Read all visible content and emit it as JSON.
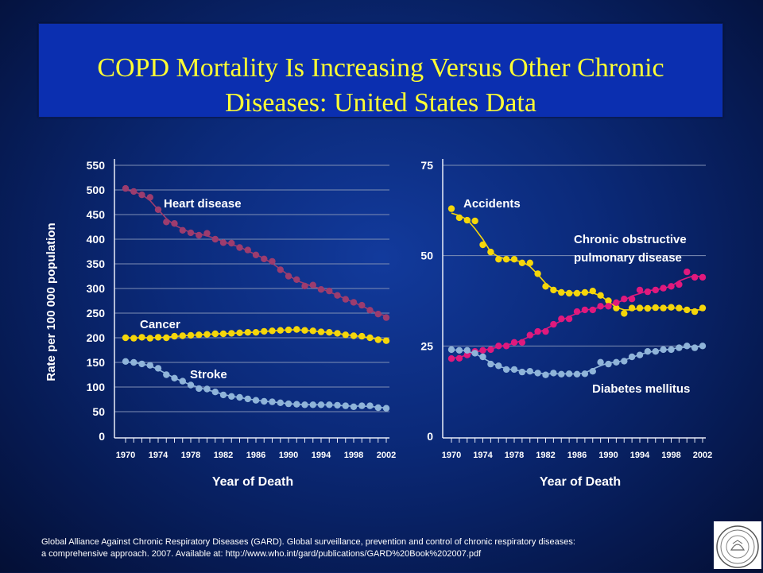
{
  "title": {
    "line1": "COPD Mortality Is Increasing Versus Other Chronic",
    "line2": "Diseases: United States Data"
  },
  "citation": {
    "line1": "Global Alliance Against Chronic Respiratory Diseases (GARD). Global surveillance, prevention and control of chronic respiratory diseases:",
    "line2": "a comprehensive approach. 2007. Available at: http://www.who.int/gard/publications/GARD%20Book%202007.pdf"
  },
  "colors": {
    "heart": "#9c3c6e",
    "cancer": "#f5d60a",
    "stroke": "#8fb4d9",
    "accidents": "#f5d60a",
    "copd": "#e0197d",
    "diabetes": "#8fb4d9",
    "grid": "#7f8fb5"
  },
  "chart_data": [
    {
      "type": "line",
      "xlabel": "Year of Death",
      "ylabel": "Rate per 100 000 population",
      "xlim": [
        1970,
        2002
      ],
      "ylim": [
        0,
        550
      ],
      "x_ticks": [
        1970,
        1974,
        1978,
        1982,
        1986,
        1990,
        1994,
        1998,
        2002
      ],
      "y_ticks": [
        0,
        50,
        100,
        150,
        200,
        250,
        300,
        350,
        400,
        450,
        500,
        550
      ],
      "grid": true,
      "x": [
        1970,
        1971,
        1972,
        1973,
        1974,
        1975,
        1976,
        1977,
        1978,
        1979,
        1980,
        1981,
        1982,
        1983,
        1984,
        1985,
        1986,
        1987,
        1988,
        1989,
        1990,
        1991,
        1992,
        1993,
        1994,
        1995,
        1996,
        1997,
        1998,
        1999,
        2000,
        2001,
        2002
      ],
      "series": [
        {
          "name": "Heart disease",
          "color_key": "heart",
          "values": [
            503,
            497,
            490,
            485,
            460,
            435,
            432,
            418,
            413,
            408,
            412,
            400,
            393,
            392,
            383,
            378,
            368,
            360,
            355,
            338,
            325,
            318,
            305,
            307,
            298,
            295,
            286,
            278,
            272,
            266,
            256,
            248,
            241
          ]
        },
        {
          "name": "Cancer",
          "color_key": "cancer",
          "values": [
            200,
            199,
            201,
            199,
            201,
            200,
            203,
            204,
            205,
            206,
            207,
            208,
            208,
            209,
            210,
            211,
            211,
            213,
            214,
            215,
            216,
            217,
            215,
            214,
            212,
            211,
            209,
            206,
            204,
            203,
            200,
            196,
            194
          ]
        },
        {
          "name": "Stroke",
          "color_key": "stroke",
          "values": [
            152,
            150,
            147,
            144,
            138,
            125,
            118,
            112,
            104,
            97,
            96,
            90,
            84,
            81,
            79,
            76,
            73,
            71,
            70,
            68,
            66,
            65,
            64,
            64,
            64,
            64,
            63,
            62,
            60,
            62,
            62,
            58,
            57
          ]
        }
      ]
    },
    {
      "type": "line",
      "xlabel": "Year of Death",
      "ylabel": "",
      "xlim": [
        1970,
        2002
      ],
      "ylim": [
        0,
        75
      ],
      "x_ticks": [
        1970,
        1974,
        1978,
        1982,
        1986,
        1990,
        1994,
        1998,
        2002
      ],
      "y_ticks": [
        0,
        25,
        50,
        75
      ],
      "grid": true,
      "x": [
        1970,
        1971,
        1972,
        1973,
        1974,
        1975,
        1976,
        1977,
        1978,
        1979,
        1980,
        1981,
        1982,
        1983,
        1984,
        1985,
        1986,
        1987,
        1988,
        1989,
        1990,
        1991,
        1992,
        1993,
        1994,
        1995,
        1996,
        1997,
        1998,
        1999,
        2000,
        2001,
        2002
      ],
      "series": [
        {
          "name": "Accidents",
          "color_key": "accidents",
          "values": [
            63,
            60.5,
            59.8,
            59.6,
            53,
            51,
            49,
            49,
            49,
            48,
            48,
            45,
            41.5,
            40.5,
            39.8,
            39.6,
            39.6,
            39.8,
            40.2,
            39,
            37.5,
            35.5,
            34,
            35.5,
            35.5,
            35.4,
            35.6,
            35.5,
            35.7,
            35.5,
            35,
            34.5,
            35.5
          ]
        },
        {
          "name": "Chronic obstructive pulmonary disease",
          "label_lines": [
            "Chronic obstructive",
            "pulmonary disease"
          ],
          "color_key": "copd",
          "values": [
            21.5,
            21.6,
            22.5,
            23.5,
            23.8,
            24,
            25,
            25,
            26,
            26,
            28,
            29,
            29,
            31,
            32.5,
            32.5,
            34.5,
            35,
            35,
            36,
            36,
            37,
            38,
            38,
            40.5,
            40,
            40.5,
            41,
            41.5,
            42,
            45.5,
            44,
            44
          ]
        },
        {
          "name": "Diabetes mellitus",
          "color_key": "diabetes",
          "values": [
            24,
            23.8,
            23.8,
            23,
            22,
            20,
            19.5,
            18.5,
            18.5,
            17.8,
            18,
            17.5,
            17,
            17.5,
            17.2,
            17.3,
            17.2,
            17.3,
            18,
            20.5,
            20,
            20.5,
            20.8,
            22,
            22.5,
            23.5,
            23.5,
            24,
            24,
            24.5,
            25,
            24.5,
            25
          ]
        }
      ]
    }
  ]
}
